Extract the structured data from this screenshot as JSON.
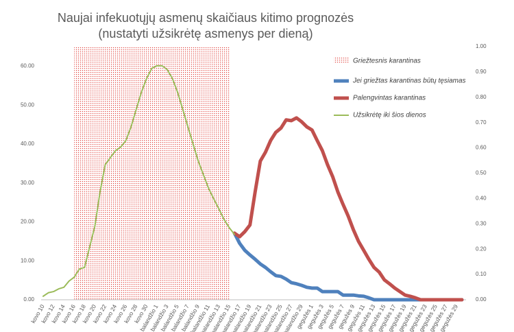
{
  "chart_data": {
    "type": "line",
    "title": [
      "Naujai infekuotųjų asmenų skaičiaus kitimo prognozės",
      "(nustatyti užsikrėtę asmenys per dieną)"
    ],
    "categories": [
      "kovo 10",
      null,
      "kovo 12",
      null,
      "kovo 14",
      null,
      "kovo 16",
      null,
      "kovo 18",
      null,
      "kovo 20",
      null,
      "kovo 22",
      null,
      "kovo 24",
      null,
      "kovo 26",
      null,
      "kovo 28",
      null,
      "kovo 30",
      null,
      "balandžio 1",
      null,
      "balandžio 3",
      null,
      "balandžio 5",
      null,
      "balandžio 7",
      null,
      "balandžio 9",
      null,
      "balandžio 11",
      null,
      "balandžio 13",
      null,
      "balandžio 15",
      null,
      "balandžio 17",
      null,
      "balandžio 19",
      null,
      "balandžio 21",
      null,
      "balandžio 23",
      null,
      "balandžio 25",
      null,
      "balandžio 27",
      null,
      "balandžio 29",
      null,
      "gegužės 1",
      null,
      "gegužės 3",
      null,
      "gegužės 5",
      null,
      "gegužės 7",
      null,
      "gegužės 9",
      null,
      "gegužės 11",
      null,
      "gegužės 13",
      null,
      "gegužės 15",
      null,
      "gegužės 17",
      null,
      "gegužės 19",
      null,
      "gegužės 21",
      null,
      "gegužės 23",
      null,
      "gegužės 25",
      null,
      "gegužės 27",
      null,
      "gegužės 29",
      null
    ],
    "shaded": {
      "name": "Griežtesnis karantinas",
      "color": "#e0403a",
      "start": "kovo 16",
      "end": "balandžio 15"
    },
    "series": [
      {
        "name": "Jei griežtas karantinas būtų tęsiamas",
        "color": "#4f81bd",
        "width": 5,
        "values": [
          null,
          null,
          null,
          null,
          null,
          null,
          null,
          null,
          null,
          null,
          null,
          null,
          null,
          null,
          null,
          null,
          null,
          null,
          null,
          null,
          null,
          null,
          null,
          null,
          null,
          null,
          null,
          null,
          null,
          null,
          null,
          null,
          null,
          null,
          null,
          null,
          null,
          17.1,
          14.5,
          12.7,
          11.5,
          10.4,
          9.2,
          8.3,
          7.2,
          6.2,
          6.0,
          5.3,
          4.4,
          4.1,
          3.7,
          3.2,
          3.0,
          3.0,
          2.1,
          2.1,
          2.1,
          2.1,
          1.2,
          1.2,
          1.2,
          1.0,
          0.9,
          0.5,
          0,
          0,
          0,
          0,
          0,
          0,
          0,
          0,
          0,
          0,
          0,
          0,
          0,
          0,
          0,
          0,
          0,
          0
        ]
      },
      {
        "name": "Palengvintas karantinas",
        "color": "#c0504d",
        "width": 5,
        "values": [
          null,
          null,
          null,
          null,
          null,
          null,
          null,
          null,
          null,
          null,
          null,
          null,
          null,
          null,
          null,
          null,
          null,
          null,
          null,
          null,
          null,
          null,
          null,
          null,
          null,
          null,
          null,
          null,
          null,
          null,
          null,
          null,
          null,
          null,
          null,
          null,
          null,
          17.1,
          16.2,
          17.5,
          19.2,
          27.7,
          35.6,
          37.9,
          40.9,
          43.0,
          44.1,
          46.2,
          46.0,
          46.7,
          45.7,
          44.4,
          43.6,
          40.9,
          38.3,
          34.7,
          31.6,
          27.7,
          24.5,
          21.5,
          18.0,
          15.0,
          12.7,
          10.4,
          8.3,
          7.1,
          5.1,
          4.1,
          3.0,
          2.1,
          1.2,
          0.9,
          0.5,
          0,
          0,
          0,
          0,
          0,
          0,
          0,
          0,
          0
        ]
      },
      {
        "name": "Užsikrėtę iki šios dienos",
        "color": "#9bbb59",
        "width": 2,
        "values": [
          0.9,
          1.8,
          2.1,
          2.8,
          3.2,
          4.8,
          5.8,
          7.9,
          8.3,
          13.6,
          18.9,
          27.7,
          34.7,
          36.5,
          38.3,
          39.2,
          40.9,
          44.4,
          48.9,
          53.3,
          56.8,
          59.4,
          60.1,
          60.1,
          59.1,
          56.8,
          53.3,
          48.9,
          44.4,
          40.0,
          35.6,
          32.1,
          28.6,
          25.9,
          23.3,
          20.6,
          18.5,
          16.8,
          null,
          null,
          null,
          null,
          null,
          null,
          null,
          null,
          null,
          null,
          null,
          null,
          null,
          null,
          null,
          null,
          null,
          null,
          null,
          null,
          null,
          null,
          null,
          null,
          null,
          null,
          null,
          null,
          null,
          null,
          null,
          null,
          null,
          null,
          null,
          null,
          null,
          null,
          null,
          null,
          null,
          null,
          null,
          null
        ]
      }
    ],
    "ylim": [
      0,
      65
    ],
    "yticks": [
      {
        "value": 0,
        "label": "0.00"
      },
      {
        "value": 10,
        "label": "10.00"
      },
      {
        "value": 20,
        "label": "20.00"
      },
      {
        "value": 30,
        "label": "30.00"
      },
      {
        "value": 40,
        "label": "40.00"
      },
      {
        "value": 50,
        "label": "50.00"
      },
      {
        "value": 60,
        "label": "60.00"
      }
    ],
    "y2lim": [
      0,
      1
    ],
    "y2ticks": [
      {
        "value": 0,
        "label": "0.00"
      },
      {
        "value": 0.1,
        "label": "0.10"
      },
      {
        "value": 0.2,
        "label": "0.20"
      },
      {
        "value": 0.3,
        "label": "0.30"
      },
      {
        "value": 0.4,
        "label": "0.40"
      },
      {
        "value": 0.5,
        "label": "0.50"
      },
      {
        "value": 0.6,
        "label": "0.60"
      },
      {
        "value": 0.7,
        "label": "0.70"
      },
      {
        "value": 0.8,
        "label": "0.80"
      },
      {
        "value": 0.9,
        "label": "0.90"
      },
      {
        "value": 1,
        "label": "1.00"
      }
    ],
    "grid": false
  }
}
